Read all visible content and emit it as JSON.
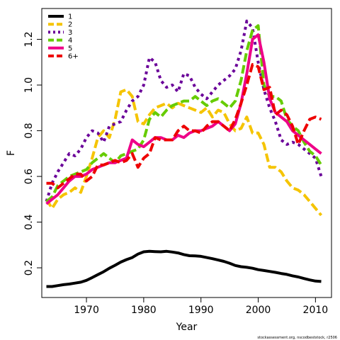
{
  "chart_data": {
    "type": "line",
    "xlabel": "Year",
    "ylabel": "F",
    "xlim": [
      1962.2,
      2012.8
    ],
    "ylim": [
      0.07,
      1.335
    ],
    "xticks": [
      1970,
      1980,
      1990,
      2000,
      2010
    ],
    "yticks": [
      0.2,
      0.4,
      0.6,
      0.8,
      1.0,
      1.2
    ],
    "ytick_labels": [
      "0.2",
      "0.4",
      "0.6",
      "0.8",
      "1.0",
      "1.2"
    ],
    "legend_position": "top-left",
    "credit": "stockassessment.org, nscodbeststock, r2506",
    "series": [
      {
        "name": "1",
        "color": "#000000",
        "dash": "solid",
        "x": [
          1963,
          1964,
          1965,
          1966,
          1967,
          1968,
          1969,
          1970,
          1971,
          1972,
          1973,
          1974,
          1975,
          1976,
          1977,
          1978,
          1979,
          1980,
          1981,
          1982,
          1983,
          1984,
          1985,
          1986,
          1987,
          1988,
          1989,
          1990,
          1991,
          1992,
          1993,
          1994,
          1995,
          1996,
          1997,
          1998,
          1999,
          2000,
          2001,
          2002,
          2003,
          2004,
          2005,
          2006,
          2007,
          2008,
          2009,
          2010,
          2011
        ],
        "values": [
          0.118,
          0.118,
          0.122,
          0.126,
          0.129,
          0.133,
          0.137,
          0.145,
          0.157,
          0.17,
          0.183,
          0.198,
          0.211,
          0.225,
          0.236,
          0.245,
          0.26,
          0.27,
          0.272,
          0.271,
          0.27,
          0.272,
          0.269,
          0.265,
          0.258,
          0.253,
          0.252,
          0.25,
          0.245,
          0.24,
          0.234,
          0.228,
          0.22,
          0.21,
          0.205,
          0.202,
          0.198,
          0.192,
          0.188,
          0.184,
          0.18,
          0.175,
          0.171,
          0.165,
          0.16,
          0.153,
          0.147,
          0.142,
          0.14
        ]
      },
      {
        "name": "2",
        "color": "#f5c400",
        "dash": "dashed",
        "x": [
          1963,
          1964,
          1965,
          1966,
          1967,
          1968,
          1969,
          1970,
          1971,
          1972,
          1973,
          1974,
          1975,
          1976,
          1977,
          1978,
          1979,
          1980,
          1981,
          1982,
          1983,
          1984,
          1985,
          1986,
          1987,
          1988,
          1989,
          1990,
          1991,
          1992,
          1993,
          1994,
          1995,
          1996,
          1997,
          1998,
          1999,
          2000,
          2001,
          2002,
          2003,
          2004,
          2005,
          2006,
          2007,
          2008,
          2009,
          2010,
          2011
        ],
        "values": [
          0.5,
          0.46,
          0.5,
          0.52,
          0.53,
          0.55,
          0.53,
          0.6,
          0.68,
          0.77,
          0.8,
          0.77,
          0.85,
          0.97,
          0.98,
          0.95,
          0.84,
          0.83,
          0.87,
          0.9,
          0.91,
          0.92,
          0.9,
          0.92,
          0.91,
          0.9,
          0.89,
          0.88,
          0.9,
          0.86,
          0.89,
          0.88,
          0.83,
          0.8,
          0.81,
          0.86,
          0.79,
          0.79,
          0.74,
          0.64,
          0.64,
          0.62,
          0.58,
          0.55,
          0.54,
          0.52,
          0.49,
          0.46,
          0.43
        ]
      },
      {
        "name": "3",
        "color": "#6a0099",
        "dash": "dotted",
        "x": [
          1963,
          1964,
          1965,
          1966,
          1967,
          1968,
          1969,
          1970,
          1971,
          1972,
          1973,
          1974,
          1975,
          1976,
          1977,
          1978,
          1979,
          1980,
          1981,
          1982,
          1983,
          1984,
          1985,
          1986,
          1987,
          1988,
          1989,
          1990,
          1991,
          1992,
          1993,
          1994,
          1995,
          1996,
          1997,
          1998,
          1999,
          2000,
          2001,
          2002,
          2003,
          2004,
          2005,
          2006,
          2007,
          2008,
          2009,
          2010,
          2011
        ],
        "values": [
          0.49,
          0.57,
          0.62,
          0.66,
          0.7,
          0.69,
          0.72,
          0.77,
          0.8,
          0.79,
          0.75,
          0.82,
          0.83,
          0.84,
          0.89,
          0.93,
          0.95,
          1.0,
          1.12,
          1.1,
          1.02,
          0.99,
          1.0,
          0.97,
          1.05,
          1.04,
          0.99,
          0.96,
          0.94,
          0.97,
          1.0,
          1.02,
          1.04,
          1.07,
          1.15,
          1.28,
          1.25,
          1.1,
          0.98,
          0.9,
          0.84,
          0.76,
          0.74,
          0.75,
          0.74,
          0.72,
          0.7,
          0.68,
          0.6
        ]
      },
      {
        "name": "4",
        "color": "#66cc00",
        "dash": "dashed",
        "x": [
          1963,
          1964,
          1965,
          1966,
          1967,
          1968,
          1969,
          1970,
          1971,
          1972,
          1973,
          1974,
          1975,
          1976,
          1977,
          1978,
          1979,
          1980,
          1981,
          1982,
          1983,
          1984,
          1985,
          1986,
          1987,
          1988,
          1989,
          1990,
          1991,
          1992,
          1993,
          1994,
          1995,
          1996,
          1997,
          1998,
          1999,
          2000,
          2001,
          2002,
          2003,
          2004,
          2005,
          2006,
          2007,
          2008,
          2009,
          2010,
          2011
        ],
        "values": [
          0.49,
          0.51,
          0.56,
          0.58,
          0.6,
          0.61,
          0.62,
          0.63,
          0.66,
          0.68,
          0.7,
          0.68,
          0.66,
          0.69,
          0.7,
          0.71,
          0.72,
          0.76,
          0.85,
          0.88,
          0.86,
          0.89,
          0.91,
          0.92,
          0.93,
          0.93,
          0.95,
          0.93,
          0.91,
          0.93,
          0.94,
          0.92,
          0.9,
          0.93,
          1.02,
          1.15,
          1.24,
          1.26,
          1.0,
          0.95,
          0.95,
          0.93,
          0.85,
          0.82,
          0.8,
          0.75,
          0.71,
          0.69,
          0.65
        ]
      },
      {
        "name": "5",
        "color": "#ee0088",
        "dash": "solid",
        "x": [
          1963,
          1964,
          1965,
          1966,
          1967,
          1968,
          1969,
          1970,
          1971,
          1972,
          1973,
          1974,
          1975,
          1976,
          1977,
          1978,
          1979,
          1980,
          1981,
          1982,
          1983,
          1984,
          1985,
          1986,
          1987,
          1988,
          1989,
          1990,
          1991,
          1992,
          1993,
          1994,
          1995,
          1996,
          1997,
          1998,
          1999,
          2000,
          2001,
          2002,
          2003,
          2004,
          2005,
          2006,
          2007,
          2008,
          2009,
          2010,
          2011
        ],
        "values": [
          0.48,
          0.5,
          0.52,
          0.55,
          0.58,
          0.6,
          0.6,
          0.61,
          0.63,
          0.64,
          0.65,
          0.66,
          0.66,
          0.67,
          0.68,
          0.76,
          0.74,
          0.73,
          0.75,
          0.77,
          0.77,
          0.76,
          0.76,
          0.78,
          0.77,
          0.79,
          0.8,
          0.8,
          0.81,
          0.82,
          0.84,
          0.82,
          0.8,
          0.83,
          0.92,
          1.05,
          1.2,
          1.22,
          1.1,
          0.94,
          0.88,
          0.86,
          0.84,
          0.8,
          0.78,
          0.76,
          0.74,
          0.72,
          0.7
        ]
      },
      {
        "name": "6+",
        "color": "#ee0000",
        "dash": "dashed",
        "x": [
          1963,
          1964,
          1965,
          1966,
          1967,
          1968,
          1969,
          1970,
          1971,
          1972,
          1973,
          1974,
          1975,
          1976,
          1977,
          1978,
          1979,
          1980,
          1981,
          1982,
          1983,
          1984,
          1985,
          1986,
          1987,
          1988,
          1989,
          1990,
          1991,
          1992,
          1993,
          1994,
          1995,
          1996,
          1997,
          1998,
          1999,
          2000,
          2001,
          2002,
          2003,
          2004,
          2005,
          2006,
          2007,
          2008,
          2009,
          2010,
          2011
        ],
        "values": [
          0.57,
          0.57,
          0.55,
          0.57,
          0.59,
          0.61,
          0.61,
          0.58,
          0.6,
          0.65,
          0.65,
          0.66,
          0.67,
          0.66,
          0.67,
          0.7,
          0.64,
          0.68,
          0.7,
          0.77,
          0.76,
          0.76,
          0.76,
          0.8,
          0.82,
          0.8,
          0.8,
          0.79,
          0.82,
          0.84,
          0.84,
          0.82,
          0.8,
          0.85,
          0.92,
          1.0,
          1.09,
          1.08,
          0.98,
          0.99,
          0.87,
          0.89,
          0.87,
          0.82,
          0.74,
          0.8,
          0.85,
          0.86,
          0.85
        ]
      }
    ]
  }
}
